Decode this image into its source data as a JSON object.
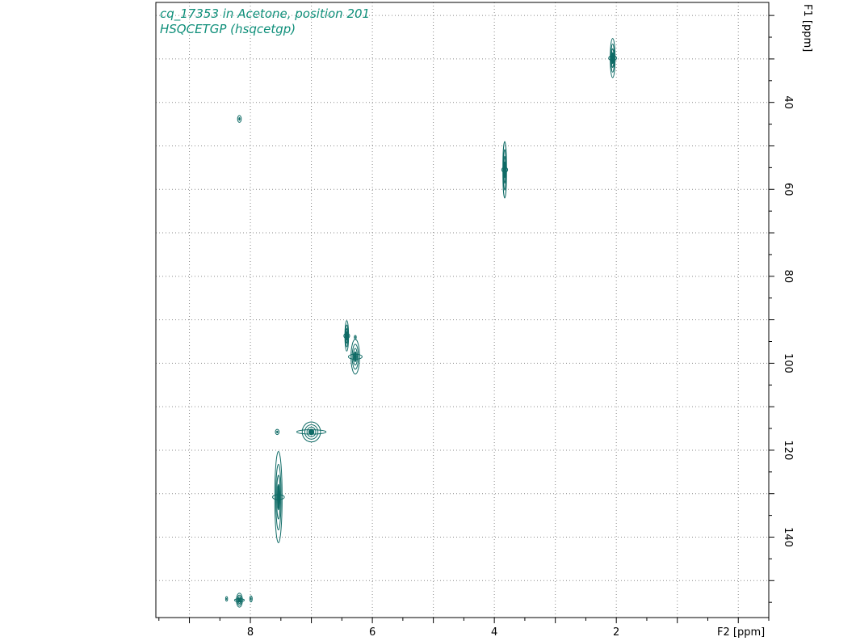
{
  "caption": {
    "line1": "cq_17353 in Acetone, position 201",
    "line2": "HSQCETGP (hsqcetgp)"
  },
  "colors": {
    "contour": "#0f6b66",
    "caption": "#0f8f7a",
    "grid": "#8a8a8a"
  },
  "chart_data": {
    "type": "scatter",
    "title": "",
    "xlabel": "F2 [ppm]",
    "ylabel": "F1 [ppm]",
    "xlim": [
      9.55,
      -0.5
    ],
    "ylim": [
      17,
      158.5
    ],
    "x_reversed": true,
    "x_ticks": [
      8,
      6,
      4,
      2
    ],
    "x_grid": [
      9,
      8,
      7,
      6,
      5,
      4,
      3,
      2,
      1,
      0
    ],
    "y_ticks": [
      40,
      60,
      80,
      100,
      120,
      140
    ],
    "y_grid": [
      20,
      30,
      40,
      50,
      60,
      70,
      80,
      90,
      100,
      110,
      120,
      130,
      140,
      150
    ],
    "grid": true,
    "points": [
      {
        "x": 2.06,
        "y": 29.8,
        "sx": 0.04,
        "sy": 4.5,
        "kind": "strong"
      },
      {
        "x": 8.18,
        "y": 43.8,
        "sx": 0.03,
        "sy": 0.8,
        "kind": "weak"
      },
      {
        "x": 3.83,
        "y": 55.5,
        "sx": 0.03,
        "sy": 6.5,
        "kind": "strong"
      },
      {
        "x": 6.42,
        "y": 93.7,
        "sx": 0.03,
        "sy": 3.5,
        "kind": "strong"
      },
      {
        "x": 6.28,
        "y": 94.0,
        "sx": 0.01,
        "sy": 0.4,
        "kind": "weak"
      },
      {
        "x": 6.28,
        "y": 98.5,
        "sx": 0.07,
        "sy": 4.0,
        "kind": "strong"
      },
      {
        "x": 7.56,
        "y": 115.8,
        "sx": 0.03,
        "sy": 0.6,
        "kind": "weak"
      },
      {
        "x": 7.0,
        "y": 115.8,
        "sx": 0.15,
        "sy": 2.3,
        "kind": "strong"
      },
      {
        "x": 7.54,
        "y": 130.8,
        "sx": 0.06,
        "sy": 10.5,
        "kind": "strong"
      },
      {
        "x": 8.18,
        "y": 154.5,
        "sx": 0.05,
        "sy": 1.6,
        "kind": "strong"
      },
      {
        "x": 8.39,
        "y": 154.2,
        "sx": 0.01,
        "sy": 0.5,
        "kind": "weak"
      },
      {
        "x": 7.99,
        "y": 154.2,
        "sx": 0.02,
        "sy": 0.7,
        "kind": "weak"
      }
    ]
  }
}
